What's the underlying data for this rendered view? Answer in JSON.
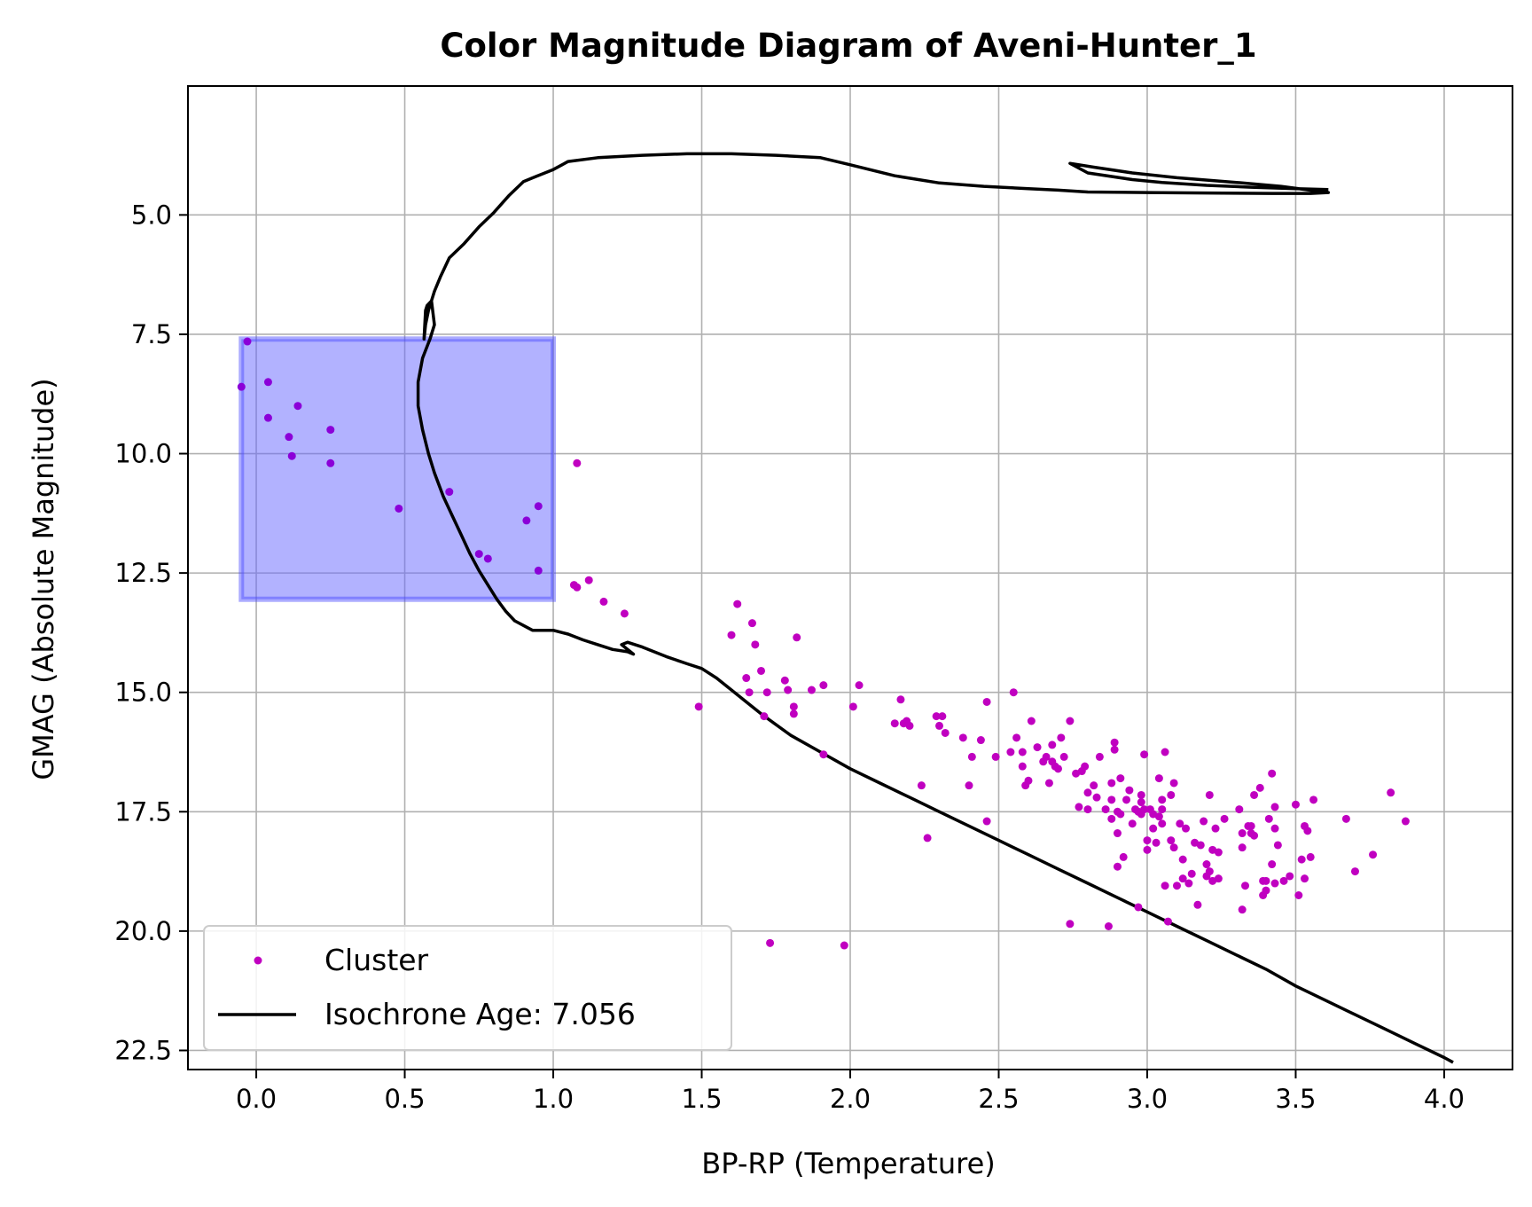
{
  "chart_data": {
    "type": "scatter",
    "title": "Color Magnitude Diagram of Aveni-Hunter_1",
    "xlabel": "BP-RP (Temperature)",
    "ylabel": "GMAG (Absolute Magnitude)",
    "xlim": [
      -0.23,
      4.23
    ],
    "ylim": [
      22.9,
      2.3
    ],
    "y_inverted": true,
    "grid": true,
    "x_ticks": [
      0.0,
      0.5,
      1.0,
      1.5,
      2.0,
      2.5,
      3.0,
      3.5,
      4.0
    ],
    "x_tick_labels": [
      "0.0",
      "0.5",
      "1.0",
      "1.5",
      "2.0",
      "2.5",
      "3.0",
      "3.5",
      "4.0"
    ],
    "y_ticks": [
      5.0,
      7.5,
      10.0,
      12.5,
      15.0,
      17.5,
      20.0,
      22.5
    ],
    "y_tick_labels": [
      "5.0",
      "7.5",
      "10.0",
      "12.5",
      "15.0",
      "17.5",
      "20.0",
      "22.5"
    ],
    "legend_position": "lower-left",
    "colors": {
      "highlight_points": "#8B00D8",
      "cluster_points": "#C000C0",
      "isochrone": "#000000",
      "region_fill": "#6666FF",
      "region_edge": "#4444FF",
      "grid": "#B0B0B0"
    },
    "highlight_region": {
      "x": [
        -0.05,
        1.0
      ],
      "y": [
        7.6,
        13.05
      ]
    },
    "series": [
      {
        "name": "Cluster",
        "kind": "scatter",
        "highlighted_points": [
          [
            -0.03,
            7.65
          ],
          [
            -0.05,
            8.6
          ],
          [
            0.04,
            8.5
          ],
          [
            0.04,
            9.25
          ],
          [
            0.14,
            9.0
          ],
          [
            0.11,
            9.65
          ],
          [
            0.12,
            10.05
          ],
          [
            0.25,
            9.5
          ],
          [
            0.25,
            10.2
          ],
          [
            0.48,
            11.15
          ],
          [
            0.65,
            10.8
          ],
          [
            0.75,
            12.1
          ],
          [
            0.78,
            12.2
          ],
          [
            0.91,
            11.4
          ],
          [
            0.95,
            11.1
          ],
          [
            0.95,
            12.45
          ]
        ],
        "points": [
          [
            1.07,
            12.75
          ],
          [
            1.08,
            12.8
          ],
          [
            1.12,
            12.65
          ],
          [
            1.08,
            10.2
          ],
          [
            1.17,
            13.1
          ],
          [
            1.24,
            13.35
          ],
          [
            1.49,
            15.3
          ],
          [
            1.6,
            13.8
          ],
          [
            1.62,
            13.15
          ],
          [
            1.65,
            14.7
          ],
          [
            1.66,
            15.0
          ],
          [
            1.67,
            13.55
          ],
          [
            1.68,
            14.0
          ],
          [
            1.7,
            14.55
          ],
          [
            1.71,
            15.5
          ],
          [
            1.72,
            15.0
          ],
          [
            1.73,
            20.25
          ],
          [
            1.78,
            14.75
          ],
          [
            1.79,
            14.95
          ],
          [
            1.81,
            15.3
          ],
          [
            1.81,
            15.45
          ],
          [
            1.82,
            13.85
          ],
          [
            1.87,
            14.95
          ],
          [
            1.91,
            14.85
          ],
          [
            1.91,
            16.3
          ],
          [
            1.98,
            20.3
          ],
          [
            2.01,
            15.3
          ],
          [
            2.03,
            14.85
          ],
          [
            2.15,
            15.65
          ],
          [
            2.17,
            15.15
          ],
          [
            2.18,
            15.65
          ],
          [
            2.19,
            15.6
          ],
          [
            2.2,
            15.7
          ],
          [
            2.24,
            16.95
          ],
          [
            2.26,
            18.05
          ],
          [
            2.29,
            15.5
          ],
          [
            2.3,
            15.7
          ],
          [
            2.31,
            15.5
          ],
          [
            2.32,
            15.85
          ],
          [
            2.38,
            15.95
          ],
          [
            2.4,
            16.95
          ],
          [
            2.41,
            16.35
          ],
          [
            2.44,
            16.0
          ],
          [
            2.46,
            15.2
          ],
          [
            2.46,
            17.7
          ],
          [
            2.49,
            16.35
          ],
          [
            2.54,
            16.25
          ],
          [
            2.55,
            15.0
          ],
          [
            2.56,
            15.95
          ],
          [
            2.58,
            16.25
          ],
          [
            2.58,
            16.55
          ],
          [
            2.59,
            16.95
          ],
          [
            2.6,
            16.85
          ],
          [
            2.61,
            15.6
          ],
          [
            2.63,
            16.15
          ],
          [
            2.65,
            16.45
          ],
          [
            2.66,
            16.35
          ],
          [
            2.67,
            16.9
          ],
          [
            2.68,
            16.45
          ],
          [
            2.68,
            16.1
          ],
          [
            2.69,
            16.55
          ],
          [
            2.7,
            16.6
          ],
          [
            2.71,
            15.95
          ],
          [
            2.72,
            16.35
          ],
          [
            2.74,
            15.6
          ],
          [
            2.74,
            19.85
          ],
          [
            2.76,
            16.7
          ],
          [
            2.77,
            17.4
          ],
          [
            2.78,
            16.65
          ],
          [
            2.79,
            16.55
          ],
          [
            2.8,
            17.45
          ],
          [
            2.8,
            17.1
          ],
          [
            2.82,
            16.95
          ],
          [
            2.83,
            17.2
          ],
          [
            2.84,
            16.35
          ],
          [
            2.86,
            17.45
          ],
          [
            2.87,
            19.9
          ],
          [
            2.88,
            16.9
          ],
          [
            2.88,
            17.25
          ],
          [
            2.88,
            17.65
          ],
          [
            2.89,
            16.05
          ],
          [
            2.89,
            16.2
          ],
          [
            2.9,
            17.5
          ],
          [
            2.9,
            17.95
          ],
          [
            2.9,
            18.65
          ],
          [
            2.91,
            17.55
          ],
          [
            2.91,
            16.8
          ],
          [
            2.92,
            18.45
          ],
          [
            2.93,
            17.25
          ],
          [
            2.94,
            17.05
          ],
          [
            2.95,
            17.75
          ],
          [
            2.96,
            17.45
          ],
          [
            2.97,
            19.5
          ],
          [
            2.97,
            17.5
          ],
          [
            2.98,
            17.15
          ],
          [
            2.98,
            17.3
          ],
          [
            2.98,
            17.55
          ],
          [
            2.99,
            17.45
          ],
          [
            2.99,
            16.3
          ],
          [
            3.0,
            18.3
          ],
          [
            3.0,
            18.1
          ],
          [
            3.01,
            17.45
          ],
          [
            3.02,
            17.55
          ],
          [
            3.02,
            17.85
          ],
          [
            3.03,
            18.15
          ],
          [
            3.04,
            16.8
          ],
          [
            3.04,
            17.6
          ],
          [
            3.05,
            17.75
          ],
          [
            3.05,
            17.45
          ],
          [
            3.05,
            17.25
          ],
          [
            3.06,
            16.25
          ],
          [
            3.06,
            19.05
          ],
          [
            3.07,
            19.8
          ],
          [
            3.08,
            17.15
          ],
          [
            3.08,
            18.1
          ],
          [
            3.09,
            16.9
          ],
          [
            3.09,
            18.25
          ],
          [
            3.1,
            19.05
          ],
          [
            3.11,
            17.75
          ],
          [
            3.12,
            18.9
          ],
          [
            3.12,
            18.5
          ],
          [
            3.13,
            17.85
          ],
          [
            3.14,
            19.0
          ],
          [
            3.15,
            18.8
          ],
          [
            3.16,
            18.15
          ],
          [
            3.17,
            19.45
          ],
          [
            3.18,
            18.2
          ],
          [
            3.19,
            17.7
          ],
          [
            3.2,
            18.6
          ],
          [
            3.2,
            18.85
          ],
          [
            3.21,
            17.15
          ],
          [
            3.21,
            18.75
          ],
          [
            3.22,
            18.95
          ],
          [
            3.22,
            18.3
          ],
          [
            3.23,
            17.85
          ],
          [
            3.24,
            18.35
          ],
          [
            3.24,
            18.9
          ],
          [
            3.26,
            17.65
          ],
          [
            3.31,
            17.45
          ],
          [
            3.32,
            17.95
          ],
          [
            3.32,
            18.25
          ],
          [
            3.32,
            19.55
          ],
          [
            3.33,
            19.05
          ],
          [
            3.34,
            17.8
          ],
          [
            3.35,
            17.95
          ],
          [
            3.35,
            17.8
          ],
          [
            3.36,
            18.0
          ],
          [
            3.36,
            17.15
          ],
          [
            3.38,
            17.0
          ],
          [
            3.39,
            19.25
          ],
          [
            3.39,
            18.95
          ],
          [
            3.4,
            19.15
          ],
          [
            3.4,
            18.95
          ],
          [
            3.41,
            17.65
          ],
          [
            3.42,
            16.7
          ],
          [
            3.42,
            18.6
          ],
          [
            3.43,
            17.85
          ],
          [
            3.43,
            19.0
          ],
          [
            3.43,
            17.4
          ],
          [
            3.44,
            18.2
          ],
          [
            3.46,
            18.95
          ],
          [
            3.48,
            18.85
          ],
          [
            3.5,
            17.35
          ],
          [
            3.51,
            19.25
          ],
          [
            3.52,
            18.5
          ],
          [
            3.53,
            17.8
          ],
          [
            3.53,
            18.9
          ],
          [
            3.54,
            17.9
          ],
          [
            3.55,
            18.45
          ],
          [
            3.56,
            17.25
          ],
          [
            3.67,
            17.65
          ],
          [
            3.7,
            18.75
          ],
          [
            3.76,
            18.4
          ],
          [
            3.82,
            17.1
          ],
          [
            3.87,
            17.7
          ]
        ]
      },
      {
        "name": "Isochrone Age: 7.056",
        "kind": "line",
        "x": [
          3.61,
          3.5,
          3.35,
          3.2,
          3.05,
          2.95,
          2.8,
          2.74,
          2.82,
          2.95,
          3.1,
          3.3,
          3.45,
          3.57,
          3.61,
          3.55,
          3.42,
          3.2,
          3.0,
          2.8,
          2.7,
          2.6,
          2.45,
          2.3,
          2.15,
          2.0,
          1.9,
          1.75,
          1.6,
          1.45,
          1.3,
          1.15,
          1.05,
          1.0,
          0.94,
          0.9,
          0.85,
          0.8,
          0.75,
          0.7,
          0.65,
          0.62,
          0.6,
          0.58,
          0.57,
          0.565,
          0.57,
          0.575,
          0.59,
          0.6,
          0.585,
          0.56,
          0.545,
          0.545,
          0.56,
          0.58,
          0.6,
          0.63,
          0.66,
          0.69,
          0.72,
          0.75,
          0.78,
          0.81,
          0.84,
          0.87,
          0.9,
          0.93,
          0.96,
          1.0,
          1.05,
          1.1,
          1.15,
          1.2,
          1.25,
          1.27,
          1.23,
          1.25,
          1.3,
          1.38,
          1.45,
          1.5,
          1.55,
          1.6,
          1.65,
          1.7,
          1.8,
          1.9,
          2.0,
          2.1,
          2.2,
          2.3,
          2.4,
          2.5,
          2.6,
          2.7,
          2.8,
          2.9,
          3.0,
          3.1,
          3.2,
          3.3,
          3.4,
          3.5,
          3.6,
          3.7,
          3.8,
          3.9,
          4.0,
          4.03
        ],
        "y": [
          4.47,
          4.45,
          4.42,
          4.38,
          4.32,
          4.26,
          4.12,
          3.92,
          4.0,
          4.12,
          4.22,
          4.32,
          4.4,
          4.5,
          4.53,
          4.55,
          4.55,
          4.54,
          4.53,
          4.52,
          4.48,
          4.45,
          4.4,
          4.33,
          4.18,
          3.95,
          3.8,
          3.75,
          3.72,
          3.72,
          3.75,
          3.8,
          3.88,
          4.05,
          4.2,
          4.3,
          4.6,
          4.95,
          5.25,
          5.6,
          5.9,
          6.3,
          6.6,
          7.0,
          7.3,
          7.6,
          7.0,
          6.9,
          6.8,
          7.3,
          7.6,
          8.0,
          8.5,
          9.0,
          9.5,
          10.0,
          10.4,
          10.9,
          11.3,
          11.7,
          12.1,
          12.45,
          12.75,
          13.05,
          13.3,
          13.5,
          13.6,
          13.7,
          13.7,
          13.7,
          13.78,
          13.9,
          14.0,
          14.1,
          14.15,
          14.2,
          14.0,
          13.95,
          14.05,
          14.25,
          14.4,
          14.5,
          14.7,
          14.95,
          15.2,
          15.45,
          15.9,
          16.25,
          16.6,
          16.9,
          17.2,
          17.5,
          17.8,
          18.1,
          18.4,
          18.7,
          19.0,
          19.3,
          19.6,
          19.9,
          20.2,
          20.5,
          20.8,
          21.15,
          21.45,
          21.75,
          22.05,
          22.35,
          22.65,
          22.75
        ]
      }
    ]
  }
}
